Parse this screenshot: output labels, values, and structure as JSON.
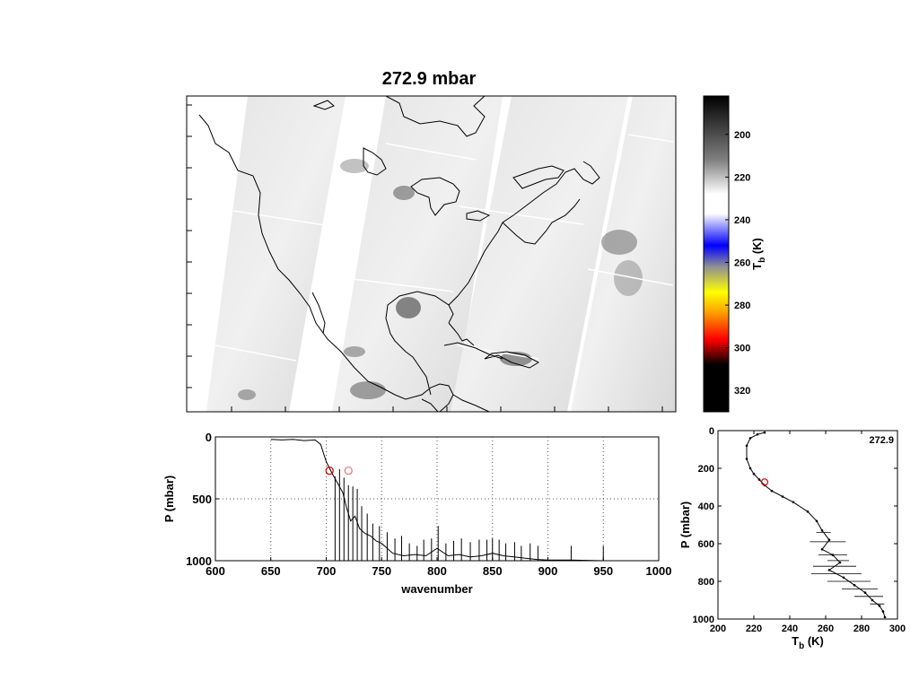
{
  "title": "272.9 mbar",
  "colorbar": {
    "label_main": "T",
    "label_sub": "b",
    "label_unit": "(K)",
    "ticks": [
      "200",
      "220",
      "240",
      "260",
      "280",
      "300",
      "320"
    ],
    "tick_values": [
      200,
      220,
      240,
      260,
      280,
      300,
      320
    ],
    "range": [
      182,
      330
    ],
    "stops": [
      {
        "t": 182,
        "color": "#000000"
      },
      {
        "t": 212,
        "color": "#808080"
      },
      {
        "t": 228,
        "color": "#ffffff"
      },
      {
        "t": 237,
        "color": "#ffffff"
      },
      {
        "t": 252,
        "color": "#0000ff"
      },
      {
        "t": 262,
        "color": "#909090"
      },
      {
        "t": 274,
        "color": "#ffff00"
      },
      {
        "t": 284,
        "color": "#ff9900"
      },
      {
        "t": 296,
        "color": "#ff0000"
      },
      {
        "t": 308,
        "color": "#000000"
      },
      {
        "t": 330,
        "color": "#000000"
      }
    ]
  },
  "chart_data": [
    {
      "type": "line",
      "id": "spectrum",
      "xlabel": "wavenumber",
      "ylabel": "P (mbar)",
      "xlim": [
        600,
        1000
      ],
      "ylim": [
        1000,
        0
      ],
      "xticks": [
        "600",
        "650",
        "700",
        "750",
        "800",
        "850",
        "900",
        "950",
        "1000"
      ],
      "yticks": [
        "0",
        "500",
        "1000"
      ],
      "grid": true,
      "x": [
        650,
        660,
        670,
        680,
        690,
        695,
        700,
        705,
        710,
        715,
        718,
        722,
        726,
        730,
        735,
        740,
        745,
        750,
        760,
        770,
        780,
        790,
        800,
        810,
        820,
        830,
        840,
        850,
        860,
        870,
        880,
        890,
        900,
        920,
        950,
        1000
      ],
      "y": [
        20,
        25,
        20,
        30,
        25,
        60,
        200,
        290,
        370,
        450,
        560,
        680,
        640,
        740,
        780,
        800,
        840,
        860,
        940,
        960,
        950,
        960,
        900,
        960,
        950,
        970,
        960,
        940,
        960,
        970,
        980,
        990,
        995,
        995,
        1000,
        1000
      ],
      "spikes": [
        {
          "x": 708,
          "y": 320
        },
        {
          "x": 712,
          "y": 260
        },
        {
          "x": 716,
          "y": 330
        },
        {
          "x": 720,
          "y": 390
        },
        {
          "x": 724,
          "y": 400
        },
        {
          "x": 728,
          "y": 420
        },
        {
          "x": 732,
          "y": 560
        },
        {
          "x": 737,
          "y": 620
        },
        {
          "x": 742,
          "y": 700
        },
        {
          "x": 748,
          "y": 720
        },
        {
          "x": 755,
          "y": 770
        },
        {
          "x": 762,
          "y": 820
        },
        {
          "x": 768,
          "y": 800
        },
        {
          "x": 775,
          "y": 860
        },
        {
          "x": 782,
          "y": 880
        },
        {
          "x": 788,
          "y": 830
        },
        {
          "x": 795,
          "y": 820
        },
        {
          "x": 801,
          "y": 720
        },
        {
          "x": 808,
          "y": 860
        },
        {
          "x": 815,
          "y": 840
        },
        {
          "x": 822,
          "y": 820
        },
        {
          "x": 830,
          "y": 850
        },
        {
          "x": 838,
          "y": 830
        },
        {
          "x": 845,
          "y": 830
        },
        {
          "x": 850,
          "y": 820
        },
        {
          "x": 856,
          "y": 830
        },
        {
          "x": 862,
          "y": 860
        },
        {
          "x": 870,
          "y": 850
        },
        {
          "x": 876,
          "y": 880
        },
        {
          "x": 884,
          "y": 860
        },
        {
          "x": 891,
          "y": 880
        },
        {
          "x": 921,
          "y": 880
        },
        {
          "x": 950,
          "y": 880
        }
      ],
      "markers": [
        {
          "x": 703,
          "y": 272.9,
          "color": "#e00000"
        },
        {
          "x": 720,
          "y": 272.9,
          "color": "#e08080"
        }
      ]
    },
    {
      "type": "line",
      "id": "profile",
      "annotation": "272.9",
      "xlabel_main": "T",
      "xlabel_sub": "b",
      "xlabel_unit": "(K)",
      "ylabel": "P (mbar)",
      "xlim": [
        200,
        300
      ],
      "ylim": [
        1000,
        0
      ],
      "xticks": [
        "200",
        "220",
        "240",
        "260",
        "280",
        "300"
      ],
      "yticks": [
        "0",
        "200",
        "400",
        "600",
        "800",
        "1000"
      ],
      "series": [
        {
          "x": [
            226,
            222,
            218,
            216,
            216,
            218,
            220,
            223,
            226,
            230,
            236,
            242,
            250,
            255,
            258,
            262,
            258,
            264,
            268,
            262,
            270,
            276,
            282,
            286,
            290,
            292,
            293
          ],
          "y": [
            10,
            20,
            40,
            80,
            150,
            200,
            230,
            260,
            290,
            320,
            350,
            380,
            430,
            480,
            530,
            580,
            630,
            660,
            700,
            740,
            780,
            820,
            860,
            900,
            930,
            960,
            990
          ]
        }
      ],
      "errorbars": [
        {
          "y": 540,
          "half": 4
        },
        {
          "y": 590,
          "half": 10
        },
        {
          "y": 660,
          "half": 8
        },
        {
          "y": 690,
          "half": 6
        },
        {
          "y": 720,
          "half": 12
        },
        {
          "y": 760,
          "half": 14
        },
        {
          "y": 800,
          "half": 12
        },
        {
          "y": 840,
          "half": 10
        },
        {
          "y": 880,
          "half": 8
        },
        {
          "y": 920,
          "half": 4
        }
      ],
      "marker": {
        "x": 226,
        "y": 272.9,
        "color": "#e00000"
      }
    }
  ]
}
